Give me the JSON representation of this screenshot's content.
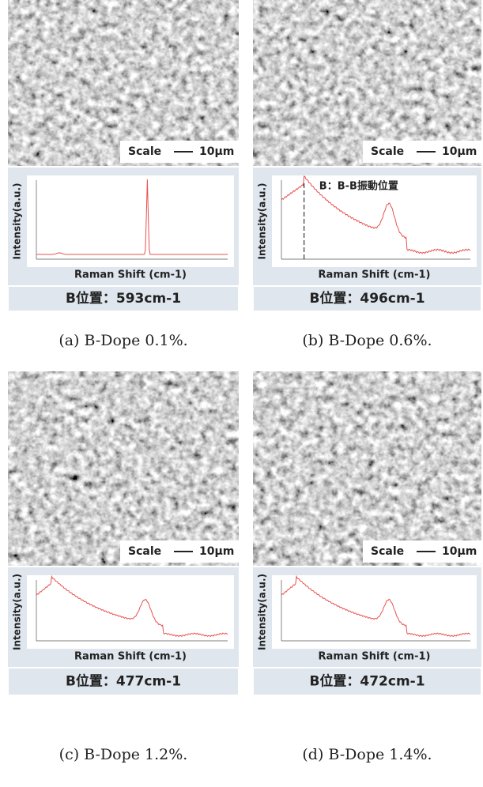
{
  "panels": [
    {
      "scale_label": "Scale",
      "scale_value": "10μm",
      "y_axis_label": "Intensity(a.u.)",
      "x_axis_label": "Raman Shift (cm-1)",
      "peak_label": "B位置：593cm-1",
      "caption": "(a) B-Dope 0.1%."
    },
    {
      "scale_label": "Scale",
      "scale_value": "10μm",
      "y_axis_label": "Intensity(a.u.)",
      "x_axis_label": "Raman Shift (cm-1)",
      "peak_label": "B位置：496cm-1",
      "caption": "(b) B-Dope 0.6%.",
      "annotation": "B：B-B振動位置"
    },
    {
      "scale_label": "Scale",
      "scale_value": "10μm",
      "y_axis_label": "Intensity(a.u.)",
      "x_axis_label": "Raman Shift (cm-1)",
      "peak_label": "B位置：477cm-1",
      "caption": "(c) B-Dope 1.2%."
    },
    {
      "scale_label": "Scale",
      "scale_value": "10μm",
      "y_axis_label": "Intensity(a.u.)",
      "x_axis_label": "Raman Shift (cm-1)",
      "peak_label": "B位置：472cm-1",
      "caption": "(d) B-Dope 1.4%."
    }
  ]
}
